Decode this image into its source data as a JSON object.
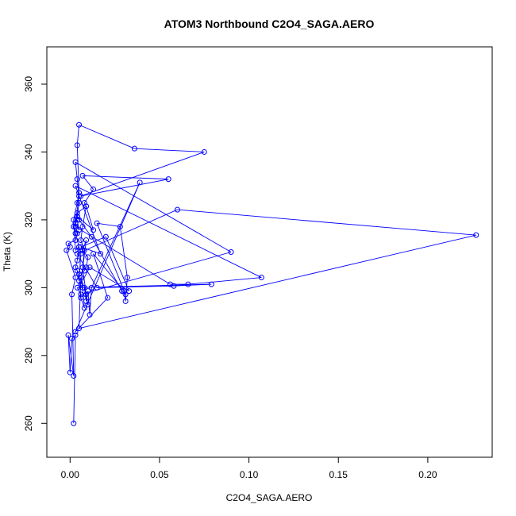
{
  "chart_data": {
    "type": "line",
    "title": "ATOM3 Northbound C2O4_SAGA.AERO",
    "xlabel": "C2O4_SAGA.AERO",
    "ylabel": "Theta (K)",
    "xlim": [
      -0.013,
      0.236
    ],
    "ylim": [
      250,
      371
    ],
    "x_ticks": [
      0,
      0.05,
      0.1,
      0.15,
      0.2
    ],
    "x_tick_labels": [
      "0.00",
      "0.05",
      "0.10",
      "0.15",
      "0.20"
    ],
    "y_ticks": [
      260,
      280,
      300,
      320,
      340,
      360
    ],
    "y_tick_labels": [
      "260",
      "280",
      "300",
      "320",
      "340",
      "360"
    ],
    "grid": false,
    "series_color": "#0000ff",
    "series": [
      {
        "x": [
          0.002,
          0.003,
          0.001,
          0.0,
          -0.001,
          0.002,
          0.001,
          0.003,
          -0.002,
          0.0,
          -0.001,
          0.003,
          0.004,
          0.002,
          0.003,
          0.005,
          0.004,
          0.002,
          0.003,
          0.006,
          0.005,
          0.004,
          0.003,
          0.004,
          0.005,
          0.003,
          0.002,
          0.004,
          0.005,
          0.004,
          0.005,
          0.036,
          0.075,
          0.006,
          0.055,
          0.007,
          0.013,
          0.008,
          0.009,
          0.007,
          0.006,
          0.008,
          0.007,
          0.009,
          0.01,
          0.008,
          0.009,
          0.01,
          0.011,
          0.012,
          0.039,
          0.003,
          0.021,
          0.013,
          0.03,
          0.031,
          0.032,
          0.028,
          0.015,
          0.031,
          0.029,
          0.012,
          0.005,
          0.004,
          0.013,
          0.009,
          0.004,
          0.003,
          0.056,
          0.066,
          0.107,
          0.003,
          0.017,
          0.006,
          0.02,
          0.033,
          0.011,
          0.006,
          0.009,
          0.007,
          0.01,
          0.009,
          0.008,
          0.005,
          0.006,
          0.008,
          0.007,
          0.006,
          0.005,
          0.227,
          0.06,
          0.004,
          0.015,
          0.058,
          0.079,
          0.004,
          0.006,
          0.09,
          0.003,
          0.004,
          0.005,
          0.003,
          0.004,
          0.005
        ],
        "y": [
          260.0,
          286.0,
          285.0,
          275.0,
          286.0,
          274.0,
          298.0,
          303.0,
          311.0,
          312.0,
          313.0,
          314.0,
          316.0,
          318.0,
          319.0,
          317.0,
          320.0,
          318.0,
          316.0,
          310.0,
          302.0,
          305.0,
          306.0,
          308.0,
          312.0,
          311.0,
          320.0,
          325.0,
          328.0,
          342.0,
          348.0,
          341.0,
          340.0,
          327.0,
          332.0,
          333.0,
          329.0,
          325.0,
          324.0,
          318.0,
          314.0,
          311.0,
          306.0,
          298.0,
          295.0,
          300.0,
          296.0,
          299.0,
          292.0,
          300.0,
          331.0,
          287.0,
          297.0,
          310.0,
          299.0,
          296.0,
          303.0,
          318.0,
          319.0,
          298.0,
          299.0,
          315.0,
          320.0,
          321.0,
          317.0,
          324.0,
          322.0,
          318.0,
          301.0,
          301.0,
          303.0,
          330.0,
          310.0,
          312.0,
          315.0,
          299.0,
          306.0,
          301.0,
          314.0,
          311.0,
          309.0,
          306.0,
          305.0,
          304.0,
          297.0,
          294.0,
          300.0,
          303.0,
          288.0,
          315.5,
          323.0,
          310.0,
          300.0,
          300.5,
          301.0,
          300.0,
          298.0,
          310.5,
          337.0,
          332.0,
          327.0,
          319.0,
          321.0,
          325.0
        ]
      }
    ]
  }
}
